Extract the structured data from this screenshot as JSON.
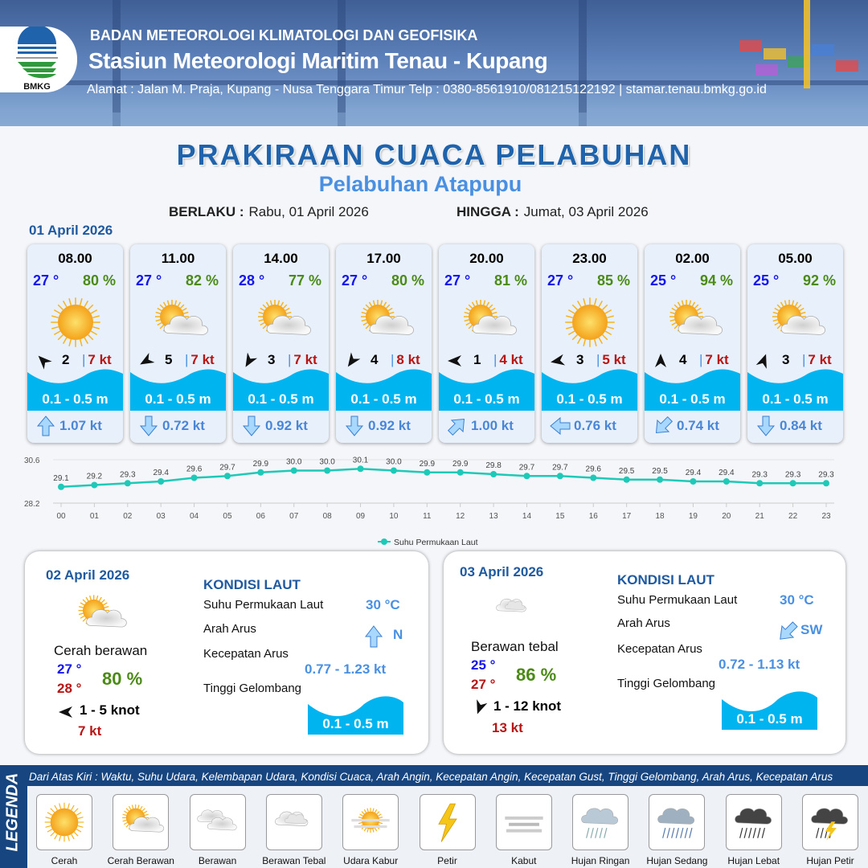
{
  "header": {
    "org": "BADAN METEOROLOGI KLIMATOLOGI DAN GEOFISIKA",
    "station": "Stasiun Meteorologi Maritim Tenau - Kupang",
    "address": "Alamat : Jalan M. Praja, Kupang - Nusa Tenggara Timur Telp : 0380-8561910/081215122192  | stamar.tenau.bmkg.go.id",
    "logo_text": "BMKG"
  },
  "title": "PRAKIRAAN CUACA PELABUHAN",
  "subtitle": "Pelabuhan Atapupu",
  "validity": {
    "from_label": "BERLAKU :",
    "from": "Rabu, 01 April 2026",
    "to_label": "HINGGA :",
    "to": "Jumat, 03 April 2026"
  },
  "day1": {
    "date": "01 April 2026",
    "cards": [
      {
        "time": "08.00",
        "temp": "27 °",
        "hum": "80 %",
        "cond": "cerah",
        "wind_dir_deg": 315,
        "wind": "2",
        "gust": "7 kt",
        "wave": "0.1 - 0.5 m",
        "cur_dir_deg": 0,
        "cur": "1.07 kt"
      },
      {
        "time": "11.00",
        "temp": "27 °",
        "hum": "82 %",
        "cond": "cerah-berawan",
        "wind_dir_deg": 240,
        "wind": "5",
        "gust": "7 kt",
        "wave": "0.1 - 0.5 m",
        "cur_dir_deg": 180,
        "cur": "0.72 kt"
      },
      {
        "time": "14.00",
        "temp": "28 °",
        "hum": "77 %",
        "cond": "cerah-berawan",
        "wind_dir_deg": 210,
        "wind": "3",
        "gust": "7 kt",
        "wave": "0.1 - 0.5 m",
        "cur_dir_deg": 180,
        "cur": "0.92 kt"
      },
      {
        "time": "17.00",
        "temp": "27 °",
        "hum": "80 %",
        "cond": "cerah-berawan",
        "wind_dir_deg": 215,
        "wind": "4",
        "gust": "8 kt",
        "wave": "0.1 - 0.5 m",
        "cur_dir_deg": 180,
        "cur": "0.92 kt"
      },
      {
        "time": "20.00",
        "temp": "27 °",
        "hum": "81 %",
        "cond": "cerah-berawan",
        "wind_dir_deg": 270,
        "wind": "1",
        "gust": "4 kt",
        "wave": "0.1 - 0.5 m",
        "cur_dir_deg": 45,
        "cur": "1.00 kt"
      },
      {
        "time": "23.00",
        "temp": "27 °",
        "hum": "85 %",
        "cond": "cerah",
        "wind_dir_deg": 260,
        "wind": "3",
        "gust": "5 kt",
        "wave": "0.1 - 0.5 m",
        "cur_dir_deg": 270,
        "cur": "0.76 kt"
      },
      {
        "time": "02.00",
        "temp": "25 °",
        "hum": "94 %",
        "cond": "cerah-berawan",
        "wind_dir_deg": 0,
        "wind": "4",
        "gust": "7 kt",
        "wave": "0.1 - 0.5 m",
        "cur_dir_deg": 225,
        "cur": "0.74 kt"
      },
      {
        "time": "05.00",
        "temp": "25 °",
        "hum": "92 %",
        "cond": "cerah-berawan",
        "wind_dir_deg": 20,
        "wind": "3",
        "gust": "7 kt",
        "wave": "0.1 - 0.5 m",
        "cur_dir_deg": 180,
        "cur": "0.84 kt"
      }
    ]
  },
  "chart_data": {
    "type": "line",
    "categories": [
      "00",
      "01",
      "02",
      "03",
      "04",
      "05",
      "06",
      "07",
      "08",
      "09",
      "10",
      "11",
      "12",
      "13",
      "14",
      "15",
      "16",
      "17",
      "18",
      "19",
      "20",
      "21",
      "22",
      "23"
    ],
    "series": [
      {
        "name": "Suhu Permukaan Laut",
        "values": [
          29.1,
          29.2,
          29.3,
          29.4,
          29.6,
          29.7,
          29.9,
          30.0,
          30.0,
          30.1,
          30.0,
          29.9,
          29.9,
          29.8,
          29.7,
          29.7,
          29.6,
          29.5,
          29.5,
          29.4,
          29.4,
          29.3,
          29.3,
          29.3
        ]
      }
    ],
    "yticks": [
      "30.6",
      "28.2"
    ],
    "ylim": [
      28.2,
      30.6
    ],
    "color": "#1ec9b7",
    "legend": "bottom",
    "grid": true
  },
  "day2": {
    "date": "02 April 2026",
    "cond_label": "Cerah berawan",
    "cond": "cerah-berawan",
    "tmin": "27 °",
    "tmax": "28 °",
    "hum": "80 %",
    "wind": "1 - 5 knot",
    "wind_dir_deg": 270,
    "gust": "7 kt",
    "sea": {
      "title": "KONDISI LAUT",
      "sst_label": "Suhu Permukaan Laut",
      "sst": "30 °C",
      "dir_label": "Arah Arus",
      "dir": "N",
      "dir_deg": 0,
      "speed_label": "Kecepatan Arus",
      "speed": "0.77 - 1.23 kt",
      "wave_label": "Tinggi Gelombang",
      "wave": "0.1 - 0.5 m"
    }
  },
  "day3": {
    "date": "03 April 2026",
    "cond_label": "Berawan tebal",
    "cond": "berawan-tebal",
    "tmin": "25 °",
    "tmax": "27 °",
    "hum": "86 %",
    "wind": "1 - 12 knot",
    "wind_dir_deg": 200,
    "gust": "13 kt",
    "sea": {
      "title": "KONDISI LAUT",
      "sst_label": "Suhu Permukaan Laut",
      "sst": "30 °C",
      "dir_label": "Arah Arus",
      "dir": "SW",
      "dir_deg": 225,
      "speed_label": "Kecepatan Arus",
      "speed": "0.72 - 1.13 kt",
      "wave_label": "Tinggi Gelombang",
      "wave": "0.1 - 0.5 m"
    }
  },
  "legend": {
    "title": "LEGENDA",
    "description": "Dari Atas Kiri : Waktu, Suhu Udara, Kelembapan Udara, Kondisi Cuaca, Arah Angin, Kecepatan Angin, Kecepatan Gust, Tinggi Gelombang, Arah Arus, Kecepatan Arus",
    "items": [
      {
        "label": "Cerah",
        "icon": "cerah"
      },
      {
        "label": "Cerah Berawan",
        "icon": "cerah-berawan"
      },
      {
        "label": "Berawan",
        "icon": "berawan"
      },
      {
        "label": "Berawan Tebal",
        "icon": "berawan-tebal"
      },
      {
        "label": "Udara Kabur",
        "icon": "udara-kabur"
      },
      {
        "label": "Petir",
        "icon": "petir"
      },
      {
        "label": "Kabut",
        "icon": "kabut"
      },
      {
        "label": "Hujan Ringan",
        "icon": "hujan-ringan"
      },
      {
        "label": "Hujan Sedang",
        "icon": "hujan-sedang"
      },
      {
        "label": "Hujan Lebat",
        "icon": "hujan-lebat"
      },
      {
        "label": "Hujan Petir",
        "icon": "hujan-petir"
      }
    ]
  },
  "colors": {
    "title": "#1f63ad",
    "temp": "#1515ee",
    "humidity": "#4b8a16",
    "gust": "#b81515",
    "wave": "#00b4f0",
    "current": "#4a86d6",
    "legend_bar": "#16457f"
  }
}
